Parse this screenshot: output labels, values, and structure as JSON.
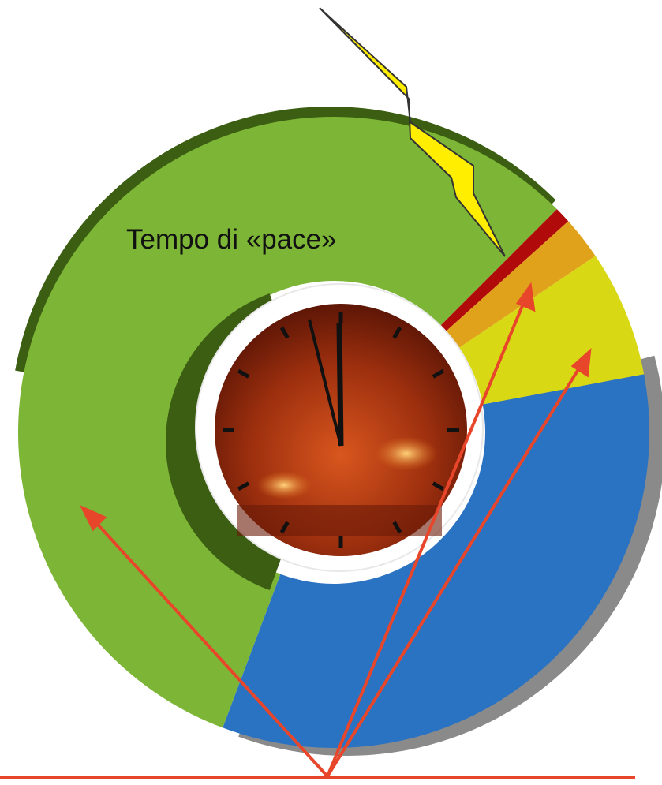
{
  "diagram": {
    "label": "Tempo di «pace»"
  }
}
